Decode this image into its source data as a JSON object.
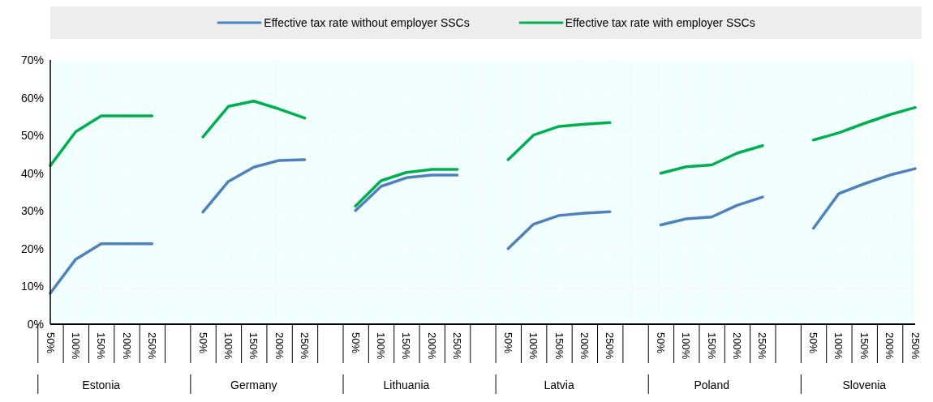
{
  "chart_data": {
    "type": "line",
    "categories": [
      "50%",
      "100%",
      "150%",
      "200%",
      "250%",
      null,
      "50%",
      "100%",
      "150%",
      "200%",
      "250%",
      null,
      "50%",
      "100%",
      "150%",
      "200%",
      "250%",
      null,
      "50%",
      "100%",
      "150%",
      "200%",
      "250%",
      null,
      "50%",
      "100%",
      "150%",
      "200%",
      "250%",
      null,
      "50%",
      "100%",
      "150%",
      "200%",
      "250%"
    ],
    "series": [
      {
        "name": "Effective tax rate without employer SSCs",
        "color": "#4f81bd",
        "values": [
          8.2,
          17.2,
          21.3,
          21.3,
          21.3,
          null,
          29.7,
          37.8,
          41.6,
          43.4,
          43.6,
          null,
          30.1,
          36.5,
          38.8,
          39.5,
          39.5,
          null,
          20,
          26.5,
          28.8,
          29.4,
          29.8,
          null,
          26.3,
          27.9,
          28.4,
          31.5,
          33.7,
          null,
          25.4,
          34.6,
          37.2,
          39.5,
          41.2
        ]
      },
      {
        "name": "Effective tax rate with employer SSCs",
        "color": "#00b050",
        "values": [
          42,
          51,
          55.2,
          55.2,
          55.2,
          null,
          49.6,
          57.7,
          59.1,
          57,
          54.6,
          null,
          31.3,
          38,
          40.2,
          41,
          41,
          null,
          43.6,
          50.1,
          52.4,
          53,
          53.4,
          null,
          40,
          41.7,
          42.2,
          45.3,
          47.3,
          null,
          48.8,
          50.7,
          53.2,
          55.5,
          57.4
        ]
      }
    ],
    "annotations": [
      "Estonia",
      "Germany",
      "Lithuania",
      "Latvia",
      "Poland",
      "Slovenia"
    ],
    "ylim": [
      0,
      70
    ],
    "yticks": [
      {
        "value": 0,
        "label": "0%"
      },
      {
        "value": 10,
        "label": "10%"
      },
      {
        "value": 20,
        "label": "20%"
      },
      {
        "value": 30,
        "label": "30%"
      },
      {
        "value": 40,
        "label": "40%"
      },
      {
        "value": 50,
        "label": "50%"
      },
      {
        "value": 60,
        "label": "60%"
      },
      {
        "value": 70,
        "label": "70%"
      }
    ],
    "grid": true,
    "legend": "top",
    "marker": "none",
    "line_style": "solid"
  }
}
